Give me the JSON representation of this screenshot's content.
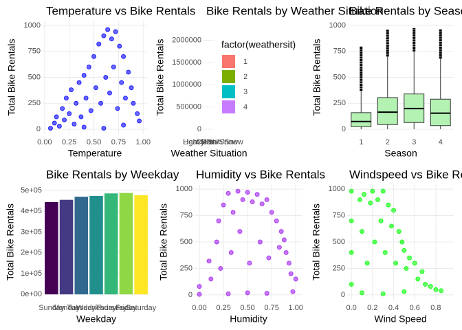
{
  "chart_data": [
    {
      "type": "scatter",
      "title": "Temperature vs Bike Rentals",
      "x_label": "Temperature",
      "y_label": "Total Bike Rentals",
      "color": "#0000FF",
      "x": [
        0.06,
        0.1,
        0.12,
        0.15,
        0.18,
        0.2,
        0.22,
        0.25,
        0.27,
        0.3,
        0.32,
        0.35,
        0.37,
        0.4,
        0.42,
        0.45,
        0.47,
        0.5,
        0.52,
        0.55,
        0.57,
        0.6,
        0.62,
        0.64,
        0.66,
        0.68,
        0.7,
        0.72,
        0.74,
        0.76,
        0.78,
        0.8,
        0.82,
        0.85,
        0.88,
        0.9,
        0.94,
        0.96,
        0.4,
        0.6,
        0.8
      ],
      "values": [
        10,
        60,
        120,
        30,
        200,
        90,
        300,
        150,
        380,
        50,
        250,
        450,
        120,
        520,
        300,
        600,
        180,
        700,
        400,
        820,
        250,
        900,
        500,
        960,
        350,
        870,
        600,
        940,
        200,
        800,
        450,
        700,
        300,
        550,
        400,
        250,
        150,
        80,
        20,
        10,
        40
      ],
      "xlim": [
        -0.02,
        1.04
      ],
      "ylim": [
        -46,
        1046
      ],
      "xticks": [
        {
          "value": 0,
          "label": "0.00"
        },
        {
          "value": 0.25,
          "label": "0.25"
        },
        {
          "value": 0.5,
          "label": "0.50"
        },
        {
          "value": 0.75,
          "label": "0.75"
        },
        {
          "value": 1,
          "label": "1.00"
        }
      ],
      "yticks": [
        0,
        250,
        500,
        750,
        1000
      ],
      "grid": true
    },
    {
      "type": "bar",
      "title": "Bike Rentals by Weather Situation",
      "x_label": "Weather Situation",
      "y_label": "Total Bike Rentals",
      "categories": [
        "Clear",
        "Mist",
        "Light Rain/Snow",
        "Heavy Rain/Snow"
      ],
      "ylim": [
        -109000,
        2440000
      ],
      "yticks": [
        0,
        500000,
        1000000,
        1500000,
        2000000
      ],
      "grid": true,
      "legend_title": "factor(weathersit)",
      "legend": [
        {
          "label": "1",
          "color": "#F8766D"
        },
        {
          "label": "2",
          "color": "#7CAE00"
        },
        {
          "label": "3",
          "color": "#00BFC4"
        },
        {
          "label": "4",
          "color": "#C77CFF"
        }
      ]
    },
    {
      "type": "box",
      "title": "Bike Rentals by Season",
      "x_label": "Season",
      "y_label": "Total Bike Rentals",
      "color": "#B3F2B3",
      "categories": [
        "1",
        "2",
        "3",
        "4"
      ],
      "min": [
        1,
        1,
        1,
        1
      ],
      "q1": [
        25,
        45,
        65,
        35
      ],
      "median": [
        75,
        165,
        200,
        155
      ],
      "q3": [
        160,
        305,
        340,
        290
      ],
      "max": [
        370,
        700,
        750,
        680
      ],
      "outlier_max": [
        800,
        960,
        975,
        965
      ],
      "ylim": [
        -46,
        1046
      ],
      "yticks": [
        0,
        250,
        500,
        750,
        1000
      ],
      "grid": true
    },
    {
      "type": "bar",
      "title": "Bike Rentals by Weekday",
      "x_label": "Weekday",
      "y_label": "Total Bike Rentals",
      "categories": [
        "Sunday",
        "Monday",
        "Tuesday",
        "Wednesday",
        "Thursday",
        "Friday",
        "Saturday"
      ],
      "values": [
        444000,
        455000,
        470000,
        474000,
        486000,
        488000,
        477000
      ],
      "colors": [
        "#440154",
        "#443A83",
        "#31688E",
        "#21908C",
        "#35B779",
        "#8FD744",
        "#FDE725"
      ],
      "ylim": [
        -26000,
        530000
      ],
      "yticks": [
        {
          "value": 0,
          "label": "0e+00"
        },
        {
          "value": 100000,
          "label": "1e+05"
        },
        {
          "value": 200000,
          "label": "2e+05"
        },
        {
          "value": 300000,
          "label": "3e+05"
        },
        {
          "value": 400000,
          "label": "4e+05"
        },
        {
          "value": 500000,
          "label": "5e+05"
        }
      ],
      "grid": true
    },
    {
      "type": "scatter",
      "title": "Humidity vs Bike Rentals",
      "x_label": "Humidity",
      "y_label": "Total Bike Rentals",
      "color": "#A020F0",
      "x": [
        0,
        0,
        0.1,
        0.12,
        0.18,
        0.2,
        0.22,
        0.25,
        0.3,
        0.33,
        0.35,
        0.4,
        0.42,
        0.45,
        0.5,
        0.52,
        0.55,
        0.6,
        0.63,
        0.65,
        0.7,
        0.72,
        0.75,
        0.8,
        0.83,
        0.85,
        0.88,
        0.9,
        0.93,
        0.95,
        1,
        0.97,
        0.5,
        0.3,
        0.7
      ],
      "values": [
        5,
        80,
        320,
        150,
        500,
        700,
        250,
        850,
        960,
        400,
        780,
        980,
        600,
        900,
        970,
        300,
        880,
        950,
        500,
        860,
        900,
        350,
        780,
        700,
        450,
        600,
        520,
        400,
        300,
        200,
        150,
        30,
        20,
        10,
        15
      ],
      "xlim": [
        -0.05,
        1.07
      ],
      "ylim": [
        -46,
        1046
      ],
      "xticks": [
        {
          "value": 0,
          "label": "0.00"
        },
        {
          "value": 0.25,
          "label": "0.25"
        },
        {
          "value": 0.5,
          "label": "0.50"
        },
        {
          "value": 0.75,
          "label": "0.75"
        },
        {
          "value": 1,
          "label": "1.00"
        }
      ],
      "yticks": [
        0,
        250,
        500,
        750,
        1000
      ],
      "grid": true
    },
    {
      "type": "scatter",
      "title": "Windspeed vs Bike Rentals",
      "x_label": "Wind Speed",
      "y_label": "Total Bike Rentals",
      "color": "#00FF00",
      "x": [
        0,
        0,
        0,
        0,
        0.08,
        0.1,
        0.12,
        0.15,
        0.18,
        0.2,
        0.22,
        0.25,
        0.28,
        0.3,
        0.32,
        0.35,
        0.38,
        0.4,
        0.42,
        0.45,
        0.48,
        0.5,
        0.52,
        0.55,
        0.6,
        0.63,
        0.67,
        0.7,
        0.75,
        0.8,
        0.85,
        0.3,
        0.1,
        0.5
      ],
      "values": [
        980,
        700,
        400,
        100,
        900,
        600,
        950,
        300,
        870,
        980,
        500,
        900,
        700,
        980,
        400,
        850,
        650,
        800,
        300,
        600,
        500,
        420,
        250,
        350,
        300,
        150,
        220,
        100,
        80,
        50,
        40,
        10,
        20,
        30
      ],
      "xlim": [
        -0.04,
        0.97
      ],
      "ylim": [
        -46,
        1046
      ],
      "xticks": [
        {
          "value": 0,
          "label": "0.0"
        },
        {
          "value": 0.2,
          "label": "0.2"
        },
        {
          "value": 0.4,
          "label": "0.4"
        },
        {
          "value": 0.6,
          "label": "0.6"
        },
        {
          "value": 0.8,
          "label": "0.8"
        }
      ],
      "yticks": [
        0,
        250,
        500,
        750,
        1000
      ],
      "grid": true
    }
  ]
}
